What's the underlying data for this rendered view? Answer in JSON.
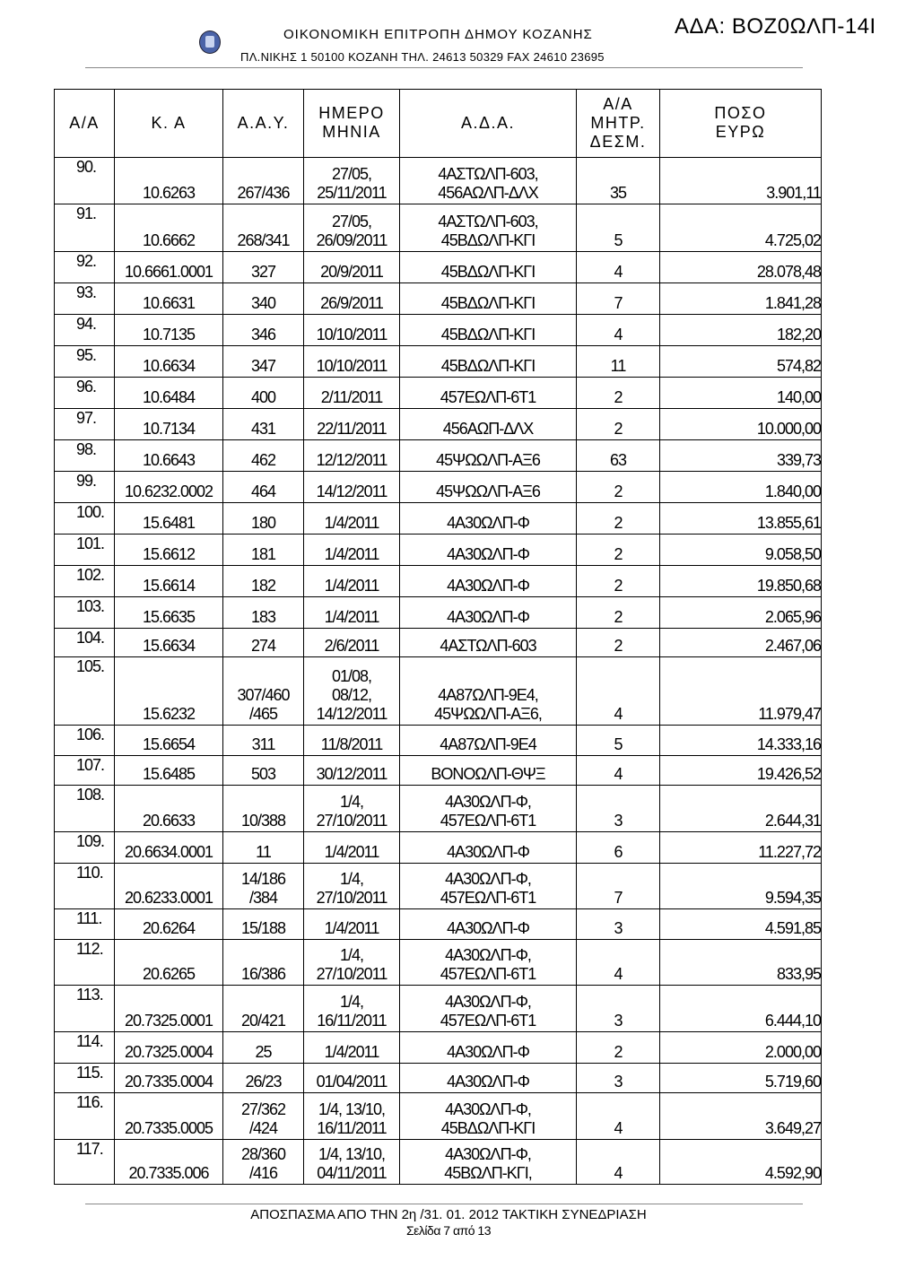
{
  "header": {
    "org": "ΟΙΚΟΝΟΜΙΚΗ ΕΠΙΤΡΟΠΗ ΔΗΜΟΥ ΚΟΖΑΝΗΣ",
    "address": "ΠΛ.ΝΙΚΗΣ 1 50100 ΚΟΖΑΝΗ ΤΗΛ. 24613 50329 FAX 24610 23695",
    "ada": "ΑΔΑ: ΒΟΖ0ΩΛΠ-14Ι",
    "seal_icon": "greek-coat-of-arms"
  },
  "table": {
    "columns": [
      "Α/Α",
      "Κ. Α",
      "Α.Α.Υ.",
      "ΗΜΕΡΟ\nΜΗΝΙΑ",
      "Α.Δ.Α.",
      "Α/Α\nΜΗΤΡ.\nΔΕΣΜ.",
      "ΠΟΣΟ\nΕΥΡΩ"
    ],
    "rows": [
      [
        "90.",
        "10.6263",
        "267/436",
        "27/05,\n25/11/2011",
        "4ΑΣΤΩΛΠ-603,\n456ΑΩΛΠ-ΔΛΧ",
        "35",
        "3.901,11"
      ],
      [
        "91.",
        "10.6662",
        "268/341",
        "27/05,\n26/09/2011",
        "4ΑΣΤΩΛΠ-603,\n45ΒΔΩΛΠ-ΚΓΙ",
        "5",
        "4.725,02"
      ],
      [
        "92.",
        "10.6661.0001",
        "327",
        "20/9/2011",
        "45ΒΔΩΛΠ-ΚΓΙ",
        "4",
        "28.078,48"
      ],
      [
        "93.",
        "10.6631",
        "340",
        "26/9/2011",
        "45ΒΔΩΛΠ-ΚΓΙ",
        "7",
        "1.841,28"
      ],
      [
        "94.",
        "10.7135",
        "346",
        "10/10/2011",
        "45ΒΔΩΛΠ-ΚΓΙ",
        "4",
        "182,20"
      ],
      [
        "95.",
        "10.6634",
        "347",
        "10/10/2011",
        "45ΒΔΩΛΠ-ΚΓΙ",
        "11",
        "574,82"
      ],
      [
        "96.",
        "10.6484",
        "400",
        "2/11/2011",
        "457ΕΩΛΠ-6Τ1",
        "2",
        "140,00"
      ],
      [
        "97.",
        "10.7134",
        "431",
        "22/11/2011",
        "456ΑΩΠ-ΔΛΧ",
        "2",
        "10.000,00"
      ],
      [
        "98.",
        "10.6643",
        "462",
        "12/12/2011",
        "45ΨΩΩΛΠ-ΑΞ6",
        "63",
        "339,73"
      ],
      [
        "99.",
        "10.6232.0002",
        "464",
        "14/12/2011",
        "45ΨΩΩΛΠ-ΑΞ6",
        "2",
        "1.840,00"
      ],
      [
        "100.",
        "15.6481",
        "180",
        "1/4/2011",
        "4Α30ΩΛΠ-Φ",
        "2",
        "13.855,61"
      ],
      [
        "101.",
        "15.6612",
        "181",
        "1/4/2011",
        "4Α30ΩΛΠ-Φ",
        "2",
        "9.058,50"
      ],
      [
        "102.",
        "15.6614",
        "182",
        "1/4/2011",
        "4Α30ΩΛΠ-Φ",
        "2",
        "19.850,68"
      ],
      [
        "103.",
        "15.6635",
        "183",
        "1/4/2011",
        "4Α30ΩΛΠ-Φ",
        "2",
        "2.065,96"
      ],
      [
        "104.",
        "15.6634",
        "274",
        "2/6/2011",
        "4ΑΣΤΩΛΠ-603",
        "2",
        "2.467,06"
      ],
      [
        "105.",
        "15.6232",
        "307/460\n/465",
        "01/08,\n08/12,\n14/12/2011",
        "4Α87ΩΛΠ-9Ε4,\n45ΨΩΩΛΠ-ΑΞ6,",
        "4",
        "11.979,47"
      ],
      [
        "106.",
        "15.6654",
        "311",
        "11/8/2011",
        "4Α87ΩΛΠ-9Ε4",
        "5",
        "14.333,16"
      ],
      [
        "107.",
        "15.6485",
        "503",
        "30/12/2011",
        "ΒΟΝΟΩΛΠ-ΘΨΞ",
        "4",
        "19.426,52"
      ],
      [
        "108.",
        "20.6633",
        "10/388",
        "1/4,\n27/10/2011",
        "4Α30ΩΛΠ-Φ,\n457ΕΩΛΠ-6Τ1",
        "3",
        "2.644,31"
      ],
      [
        "109.",
        "20.6634.0001",
        "11",
        "1/4/2011",
        "4Α30ΩΛΠ-Φ",
        "6",
        "11.227,72"
      ],
      [
        "110.",
        "20.6233.0001",
        "14/186\n/384",
        "1/4,\n27/10/2011",
        "4Α30ΩΛΠ-Φ,\n457ΕΩΛΠ-6Τ1",
        "7",
        "9.594,35"
      ],
      [
        "111.",
        "20.6264",
        "15/188",
        "1/4/2011",
        "4Α30ΩΛΠ-Φ",
        "3",
        "4.591,85"
      ],
      [
        "112.",
        "20.6265",
        "16/386",
        "1/4,\n27/10/2011",
        "4Α30ΩΛΠ-Φ,\n457ΕΩΛΠ-6Τ1",
        "4",
        "833,95"
      ],
      [
        "113.",
        "20.7325.0001",
        "20/421",
        "1/4,\n16/11/2011",
        "4Α30ΩΛΠ-Φ,\n457ΕΩΛΠ-6Τ1",
        "3",
        "6.444,10"
      ],
      [
        "114.",
        "20.7325.0004",
        "25",
        "1/4/2011",
        "4Α30ΩΛΠ-Φ",
        "2",
        "2.000,00"
      ],
      [
        "115.",
        "20.7335.0004",
        "26/23",
        "01/04/2011",
        "4Α30ΩΛΠ-Φ",
        "3",
        "5.719,60"
      ],
      [
        "116.",
        "20.7335.0005",
        "27/362\n/424",
        "1/4, 13/10,\n16/11/2011",
        "4Α30ΩΛΠ-Φ,\n45ΒΔΩΛΠ-ΚΓΙ",
        "4",
        "3.649,27"
      ],
      [
        "117.",
        "20.7335.006",
        "28/360\n/416",
        "1/4, 13/10,\n04/11/2011",
        "4Α30ΩΛΠ-Φ,\n45ΒΩΛΠ-ΚΓΙ,",
        "4",
        "4.592,90"
      ]
    ]
  },
  "footer": {
    "line1": "ΑΠΟΣΠΑΣΜΑ ΑΠΟ ΤΗΝ 2η /31. 01. 2012 ΤΑΚΤΙΚΗ ΣΥΝΕΔΡΙΑΣΗ",
    "line2": "Σελίδα 7 από 13"
  }
}
